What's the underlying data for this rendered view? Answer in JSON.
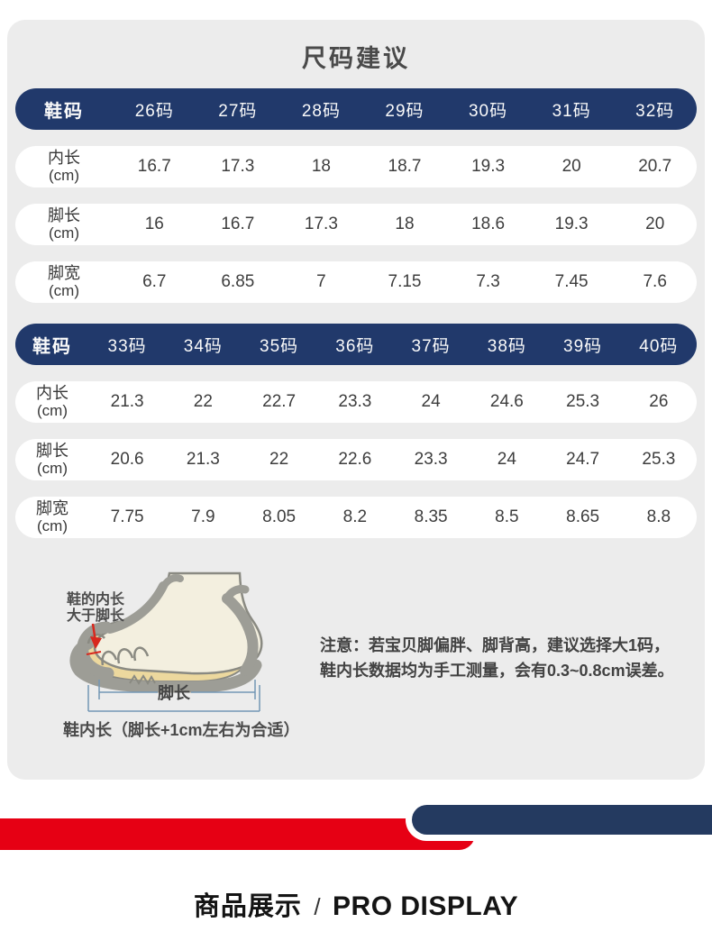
{
  "page_title": "尺码建议",
  "colors": {
    "header_navy": "#21396b",
    "stripe_navy": "#243a60",
    "stripe_red": "#e60014",
    "panel_gray": "#ececec",
    "bracket_blue": "#7396b5",
    "arrow_red": "#d8281e"
  },
  "tables": [
    {
      "header": [
        "鞋码",
        "26码",
        "27码",
        "28码",
        "29码",
        "30码",
        "31码",
        "32码"
      ],
      "rows": [
        {
          "label": "内长",
          "unit": "(cm)",
          "values": [
            "16.7",
            "17.3",
            "18",
            "18.7",
            "19.3",
            "20",
            "20.7"
          ]
        },
        {
          "label": "脚长",
          "unit": "(cm)",
          "values": [
            "16",
            "16.7",
            "17.3",
            "18",
            "18.6",
            "19.3",
            "20"
          ]
        },
        {
          "label": "脚宽",
          "unit": "(cm)",
          "values": [
            "6.7",
            "6.85",
            "7",
            "7.15",
            "7.3",
            "7.45",
            "7.6"
          ]
        }
      ]
    },
    {
      "header": [
        "鞋码",
        "33码",
        "34码",
        "35码",
        "36码",
        "37码",
        "38码",
        "39码",
        "40码"
      ],
      "rows": [
        {
          "label": "内长",
          "unit": "(cm)",
          "values": [
            "21.3",
            "22",
            "22.7",
            "23.3",
            "24",
            "24.6",
            "25.3",
            "26"
          ]
        },
        {
          "label": "脚长",
          "unit": "(cm)",
          "values": [
            "20.6",
            "21.3",
            "22",
            "22.6",
            "23.3",
            "24",
            "24.7",
            "25.3"
          ]
        },
        {
          "label": "脚宽",
          "unit": "(cm)",
          "values": [
            "7.75",
            "7.9",
            "8.05",
            "8.2",
            "8.35",
            "8.5",
            "8.65",
            "8.8"
          ]
        }
      ]
    }
  ],
  "diagram": {
    "annotation_line1": "鞋的内长",
    "annotation_line2": "大于脚长",
    "foot_length_label": "脚长",
    "caption": "鞋内长（脚长+1cm左右为合适）"
  },
  "notice": {
    "line1": "注意：若宝贝脚偏胖、脚背高，建议选择大1码，",
    "line2": "鞋内长数据均为手工测量，会有0.3~0.8cm误差。"
  },
  "footer": {
    "title_cn": "商品展示",
    "separator": "/",
    "title_en": "PRO DISPLAY"
  }
}
